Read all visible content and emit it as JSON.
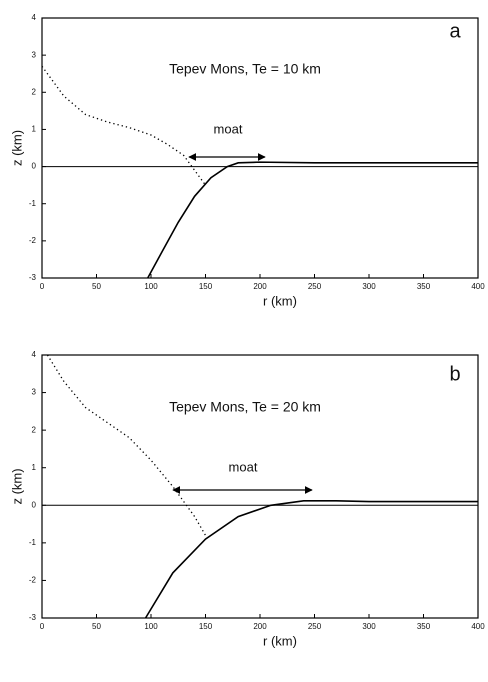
{
  "chart_data": [
    {
      "type": "line",
      "title": "Tepev Mons, Te = 10 km",
      "panel": "a",
      "annotation": "moat",
      "xlabel": "r (km)",
      "ylabel": "z (km)",
      "xlim": [
        0,
        400
      ],
      "xticks": [
        0,
        50,
        100,
        150,
        200,
        250,
        300,
        350,
        400
      ],
      "ylim": [
        -3,
        4
      ],
      "yticks": [
        4,
        3,
        2,
        1,
        0,
        -1,
        -2,
        -3
      ],
      "series": [
        {
          "style": "solid",
          "color": "#000000",
          "x": [
            97,
            110,
            125,
            140,
            155,
            170,
            180,
            200,
            250,
            300,
            400
          ],
          "values": [
            -3,
            -2.3,
            -1.5,
            -0.8,
            -0.3,
            0,
            0.1,
            0.12,
            0.1,
            0.1,
            0.1
          ]
        },
        {
          "style": "dotted",
          "color": "#000000",
          "x": [
            0,
            10,
            20,
            40,
            60,
            80,
            100,
            115,
            130,
            150
          ],
          "values": [
            2.7,
            2.3,
            1.9,
            1.4,
            1.2,
            1.05,
            0.85,
            0.6,
            0.3,
            -0.5
          ]
        }
      ]
    },
    {
      "type": "line",
      "title": "Tepev Mons, Te = 20 km",
      "panel": "b",
      "annotation": "moat",
      "xlabel": "r (km)",
      "ylabel": "z (km)",
      "xlim": [
        0,
        400
      ],
      "xticks": [
        0,
        50,
        100,
        150,
        200,
        250,
        300,
        350,
        400
      ],
      "ylim": [
        -3,
        4
      ],
      "yticks": [
        4,
        3,
        2,
        1,
        0,
        -1,
        -2,
        -3
      ],
      "series": [
        {
          "style": "solid",
          "color": "#000000",
          "x": [
            95,
            120,
            150,
            180,
            210,
            240,
            270,
            300,
            400
          ],
          "values": [
            -3,
            -1.8,
            -0.9,
            -0.3,
            0,
            0.12,
            0.12,
            0.1,
            0.1
          ]
        },
        {
          "style": "dotted",
          "color": "#000000",
          "x": [
            5,
            20,
            40,
            60,
            80,
            100,
            120,
            140,
            150
          ],
          "values": [
            4,
            3.3,
            2.6,
            2.2,
            1.8,
            1.2,
            0.5,
            -0.3,
            -0.8
          ]
        }
      ]
    }
  ]
}
